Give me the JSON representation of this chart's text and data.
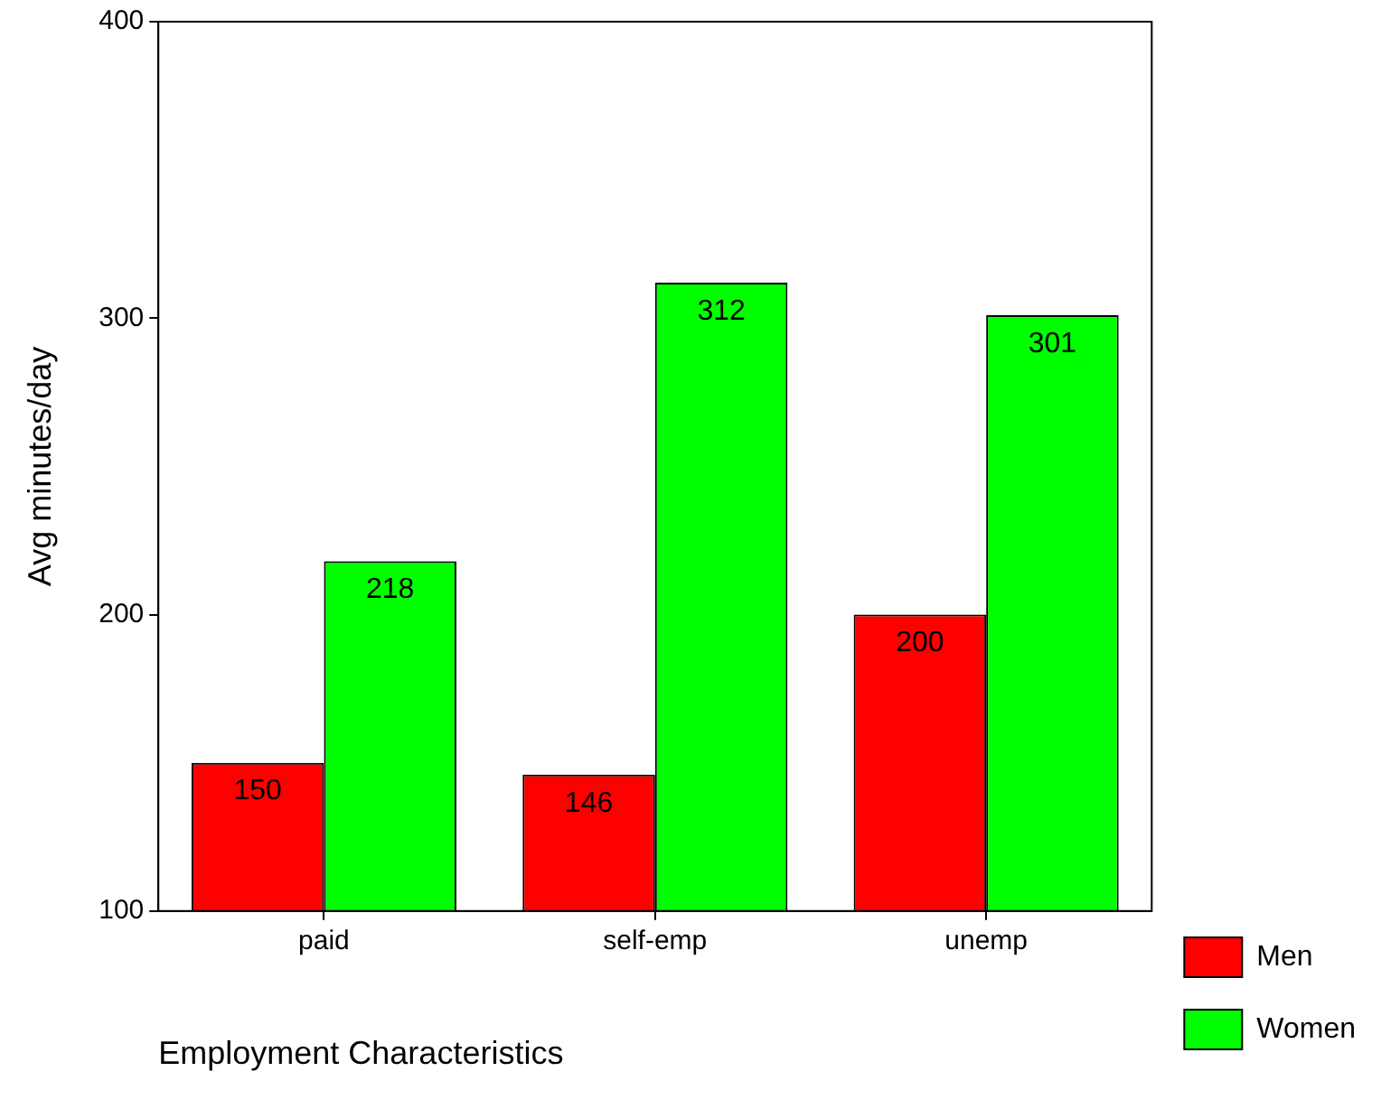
{
  "chart_data": {
    "type": "bar",
    "xlabel": "Employment Characteristics",
    "ylabel": "Avg minutes/day",
    "categories": [
      "paid",
      "self-emp",
      "unemp"
    ],
    "series": [
      {
        "name": "Men",
        "color": "#ff0000",
        "values": [
          150,
          146,
          200
        ]
      },
      {
        "name": "Women",
        "color": "#00ff00",
        "values": [
          218,
          312,
          301
        ]
      }
    ],
    "ylim": [
      100,
      400
    ],
    "yticks": [
      100,
      200,
      300,
      400
    ],
    "grid": false,
    "legend": "bottom right",
    "data_labels": true
  }
}
